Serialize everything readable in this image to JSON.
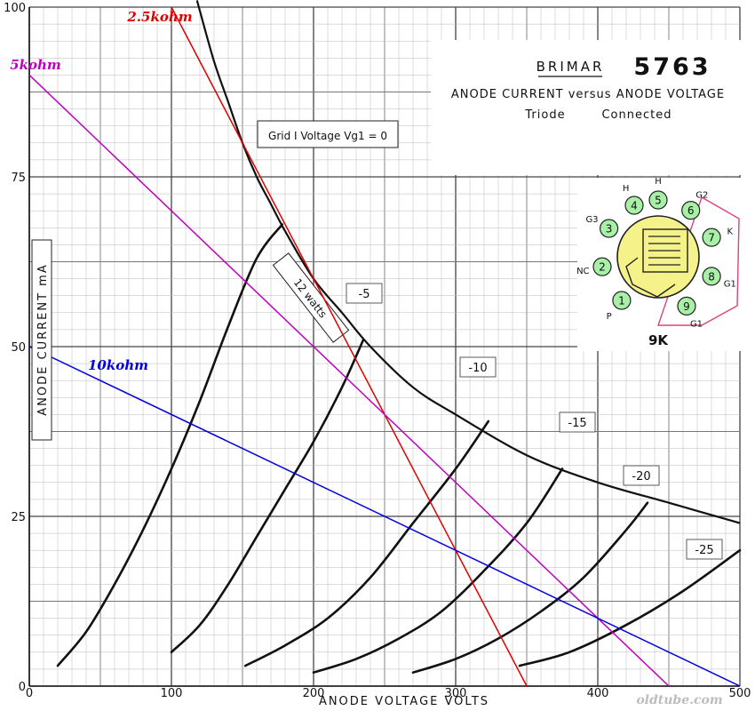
{
  "chart_data": {
    "type": "line",
    "title": "ANODE CURRENT versus ANODE VOLTAGE",
    "brand": "BRIMAR",
    "tube": "5763",
    "subtitle_left": "Triode",
    "subtitle_right": "Connected",
    "xlabel": "ANODE VOLTAGE VOLTS",
    "ylabel": "ANODE CURRENT mA",
    "xlim": [
      0,
      500
    ],
    "ylim": [
      0,
      100
    ],
    "x_ticks": [
      "0",
      "100",
      "200",
      "300",
      "400",
      "500"
    ],
    "y_ticks": [
      "0",
      "25",
      "50",
      "75",
      "100"
    ],
    "grid": true,
    "grid_label": "Grid I Voltage Vg1 = 0",
    "power_label": "12 watts",
    "curves": [
      {
        "name": "0",
        "x": [
          20,
          40,
          60,
          80,
          100,
          120,
          140,
          160,
          178
        ],
        "y": [
          3,
          8,
          15,
          23,
          32,
          42,
          53,
          63,
          68
        ]
      },
      {
        "name": "-5",
        "label": "-5",
        "x": [
          100,
          120,
          140,
          160,
          180,
          200,
          220,
          235
        ],
        "y": [
          5,
          9,
          15,
          22,
          29,
          36,
          44,
          51
        ]
      },
      {
        "name": "-10",
        "label": "-10",
        "x": [
          152,
          180,
          210,
          240,
          270,
          300,
          323
        ],
        "y": [
          3,
          6,
          10,
          16,
          24,
          32,
          39
        ]
      },
      {
        "name": "-15",
        "label": "-15",
        "x": [
          200,
          230,
          260,
          290,
          320,
          350,
          375
        ],
        "y": [
          2,
          4,
          7,
          11,
          17,
          24,
          32
        ]
      },
      {
        "name": "-20",
        "label": "-20",
        "x": [
          270,
          300,
          330,
          360,
          390,
          420,
          435
        ],
        "y": [
          2,
          4,
          7,
          11,
          16,
          23,
          27
        ]
      },
      {
        "name": "-25",
        "label": "-25",
        "x": [
          345,
          380,
          420,
          460,
          500
        ],
        "y": [
          3,
          5,
          9,
          14,
          20
        ]
      }
    ],
    "dissipation": {
      "x": [
        118,
        130,
        140,
        150,
        160,
        170,
        180,
        200,
        220,
        240,
        270,
        300,
        350,
        400,
        450,
        500
      ],
      "y": [
        101,
        92,
        86,
        80,
        75,
        71,
        67,
        60,
        55,
        50,
        44,
        40,
        34,
        30,
        27,
        24
      ]
    },
    "load_lines": [
      {
        "name": "2.5kohm",
        "label": "2.5kohm",
        "color": "#e00000",
        "x": [
          100,
          350
        ],
        "y": [
          100,
          0
        ]
      },
      {
        "name": "5kohm",
        "label": "5kohm",
        "color": "#c000c0",
        "x": [
          0,
          450
        ],
        "y": [
          90,
          0
        ]
      },
      {
        "name": "10kohm",
        "label": "10kohm",
        "color": "#0000e0",
        "x": [
          0,
          500
        ],
        "y": [
          50,
          0
        ]
      }
    ],
    "pin_diagram": {
      "base": "9K",
      "pins": [
        {
          "n": "1",
          "label": "P"
        },
        {
          "n": "2",
          "label": "NC"
        },
        {
          "n": "3",
          "label": "G3"
        },
        {
          "n": "4",
          "label": "H"
        },
        {
          "n": "5",
          "label": "H"
        },
        {
          "n": "6",
          "label": "G2"
        },
        {
          "n": "7",
          "label": "K"
        },
        {
          "n": "8",
          "label": "G1"
        },
        {
          "n": "9",
          "label": "G1"
        }
      ]
    },
    "watermark": "oldtube.com"
  }
}
